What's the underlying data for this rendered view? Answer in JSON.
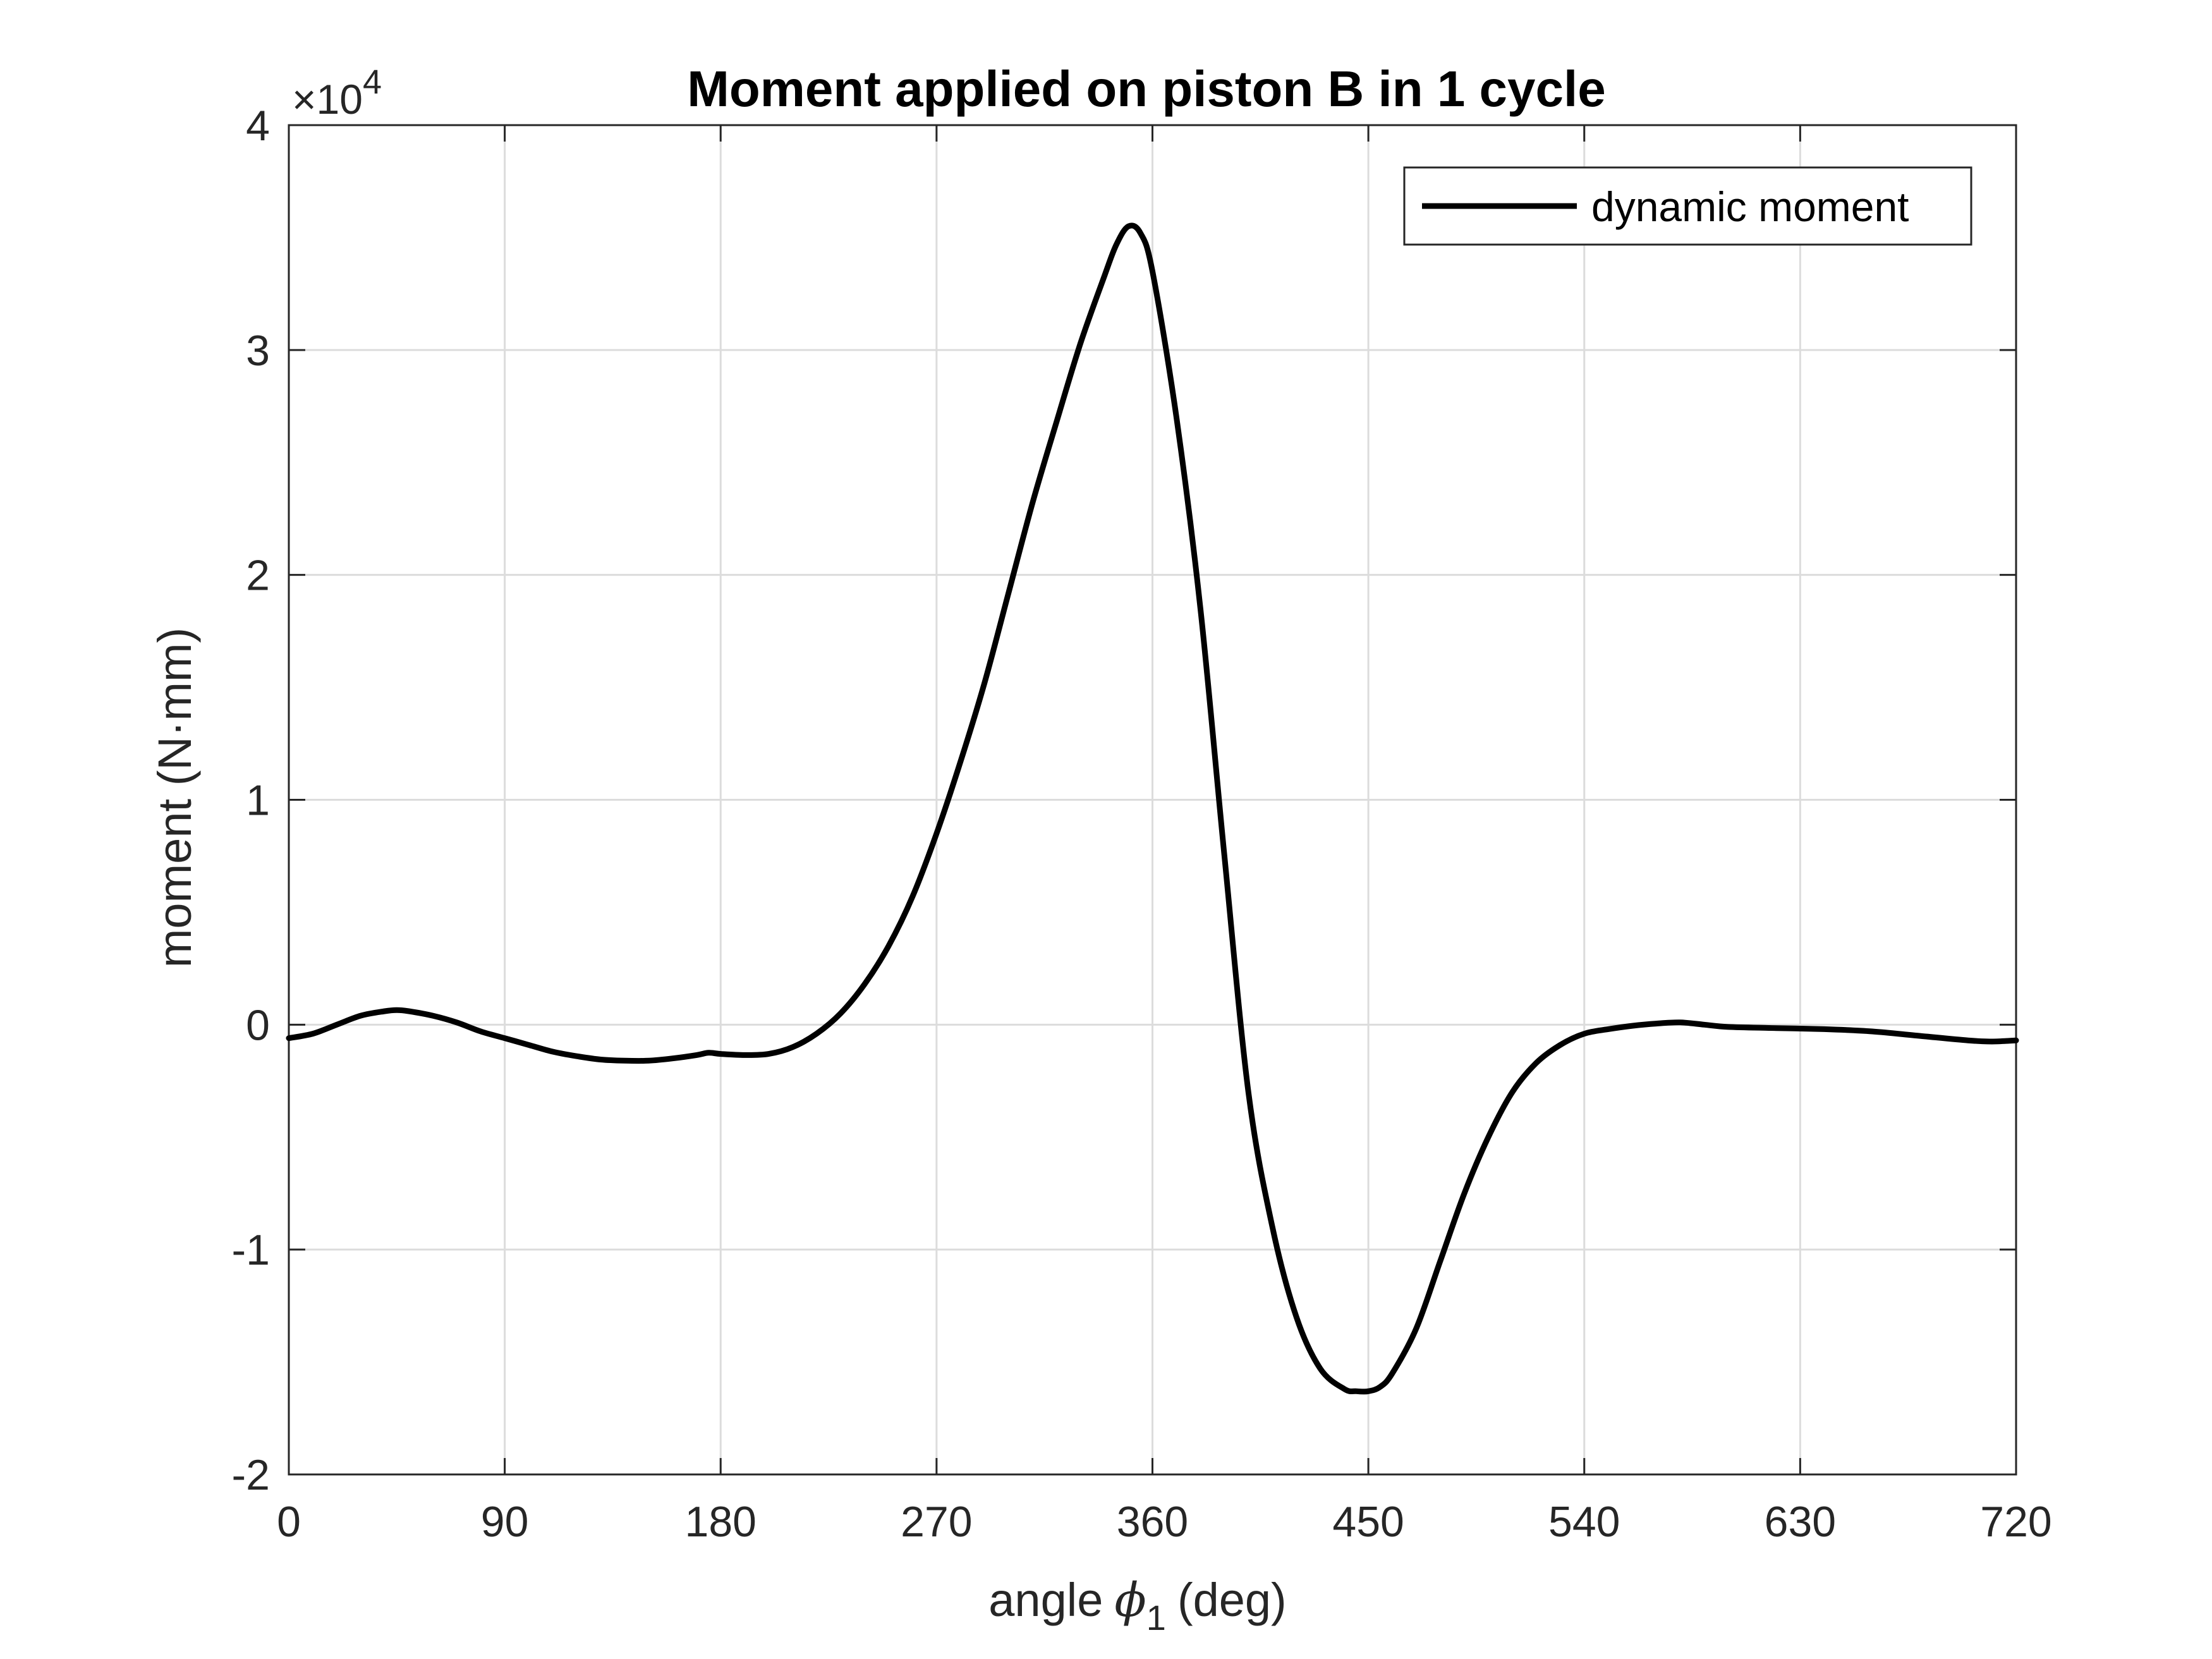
{
  "chart_data": {
    "type": "line",
    "title": "Moment applied on piston B in 1 cycle",
    "xlabel": "angle",
    "xlabel_symbol": "ϕ",
    "xlabel_subscript": "1",
    "xlabel_unit": "(deg)",
    "ylabel": "moment (N·mm)",
    "y_multiplier": "×10",
    "y_multiplier_exponent": "4",
    "xlim": [
      0,
      720
    ],
    "ylim": [
      -20000,
      40000
    ],
    "xticks": [
      0,
      90,
      180,
      270,
      360,
      450,
      540,
      630,
      720
    ],
    "xtick_labels": [
      "0",
      "90",
      "180",
      "270",
      "360",
      "450",
      "540",
      "630",
      "720"
    ],
    "yticks": [
      -20000,
      -10000,
      0,
      10000,
      20000,
      30000,
      40000
    ],
    "ytick_labels": [
      "-2",
      "-1",
      "0",
      "1",
      "2",
      "3",
      "4"
    ],
    "grid": true,
    "legend_position": "top-right",
    "series": [
      {
        "name": "dynamic moment",
        "color": "#000000",
        "x": [
          0,
          10,
          20,
          30,
          40,
          45,
          50,
          60,
          70,
          80,
          90,
          100,
          110,
          120,
          130,
          140,
          150,
          160,
          170,
          175,
          180,
          190,
          200,
          210,
          220,
          230,
          240,
          250,
          260,
          270,
          280,
          290,
          300,
          310,
          320,
          330,
          340,
          345,
          350,
          355,
          360,
          370,
          380,
          390,
          400,
          410,
          420,
          430,
          440,
          445,
          450,
          455,
          460,
          470,
          480,
          490,
          500,
          510,
          520,
          530,
          540,
          550,
          560,
          570,
          580,
          590,
          600,
          620,
          640,
          660,
          680,
          700,
          710,
          720
        ],
        "y": [
          -600,
          -400,
          0,
          400,
          600,
          650,
          600,
          400,
          100,
          -300,
          -600,
          -900,
          -1200,
          -1400,
          -1550,
          -1600,
          -1600,
          -1500,
          -1350,
          -1250,
          -1300,
          -1350,
          -1300,
          -1000,
          -400,
          500,
          1800,
          3500,
          5700,
          8500,
          11700,
          15200,
          19200,
          23200,
          26800,
          30300,
          33300,
          34700,
          35500,
          35200,
          33500,
          27000,
          18500,
          7500,
          -3000,
          -9000,
          -13000,
          -15300,
          -16200,
          -16300,
          -16300,
          -16100,
          -15500,
          -13500,
          -10500,
          -7500,
          -5000,
          -3000,
          -1700,
          -900,
          -400,
          -200,
          -50,
          50,
          100,
          0,
          -100,
          -150,
          -200,
          -300,
          -500,
          -700,
          -750,
          -700
        ]
      }
    ]
  }
}
